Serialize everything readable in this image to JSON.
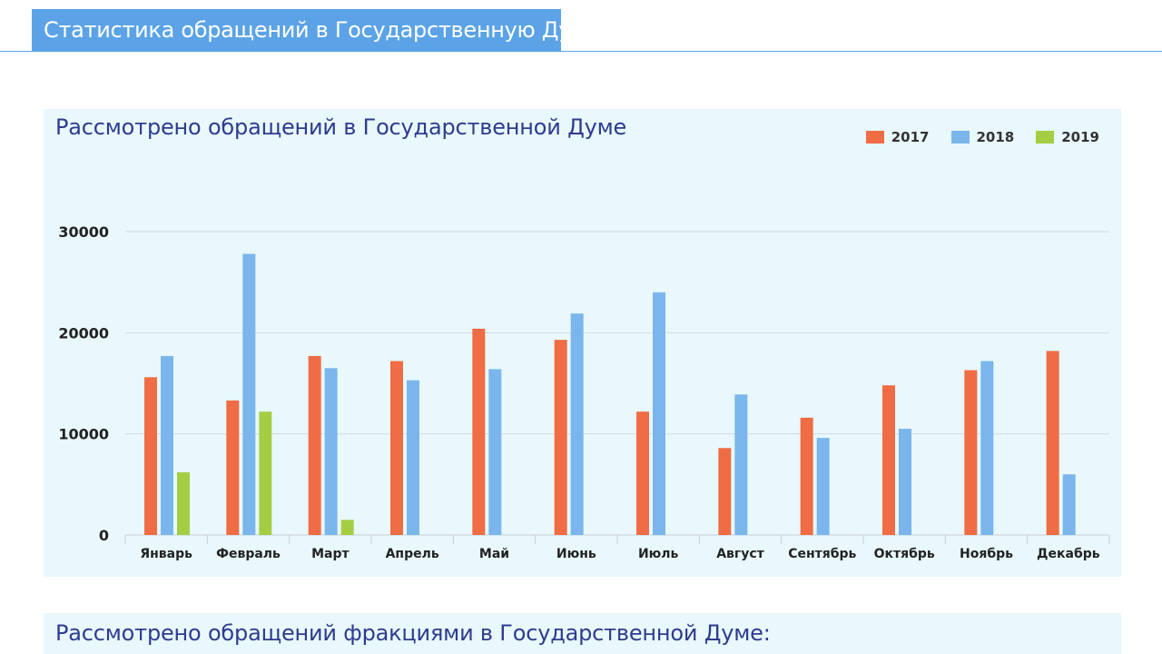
{
  "header": {
    "title": "Статистика обращений в Государственную Думу"
  },
  "colors": {
    "header_bg": "#5ba3e6",
    "panel_bg": "#e8f8fc",
    "title_text": "#2f3b8f",
    "series_2017": "#ef6c45",
    "series_2018": "#7ab6ec",
    "series_2019": "#a5cd44"
  },
  "chart_panel": {
    "title": "Рассмотрено обращений в Государственной Думе"
  },
  "chart_data": {
    "type": "bar",
    "title": "Рассмотрено обращений в Государственной Думе",
    "xlabel": "",
    "ylabel": "",
    "categories": [
      "Январь",
      "Февраль",
      "Март",
      "Апрель",
      "Май",
      "Июнь",
      "Июль",
      "Август",
      "Сентябрь",
      "Октябрь",
      "Ноябрь",
      "Декабрь"
    ],
    "series": [
      {
        "name": "2017",
        "color": "#ef6c45",
        "values": [
          15600,
          13300,
          17700,
          17200,
          20400,
          19300,
          12200,
          8600,
          11600,
          14800,
          16300,
          18200
        ]
      },
      {
        "name": "2018",
        "color": "#7ab6ec",
        "values": [
          17700,
          27800,
          16500,
          15300,
          16400,
          21900,
          24000,
          13900,
          9600,
          10500,
          17200,
          6000
        ]
      },
      {
        "name": "2019",
        "color": "#a5cd44",
        "values": [
          6200,
          12200,
          1500,
          null,
          null,
          null,
          null,
          null,
          null,
          null,
          null,
          null
        ]
      }
    ],
    "yticks": [
      "0",
      "10000",
      "20000",
      "30000"
    ],
    "ylim": [
      0,
      30000
    ],
    "grid": true,
    "legend_position": "top-right"
  },
  "second_panel": {
    "title": "Рассмотрено обращений фракциями в Государственной Думе:"
  }
}
